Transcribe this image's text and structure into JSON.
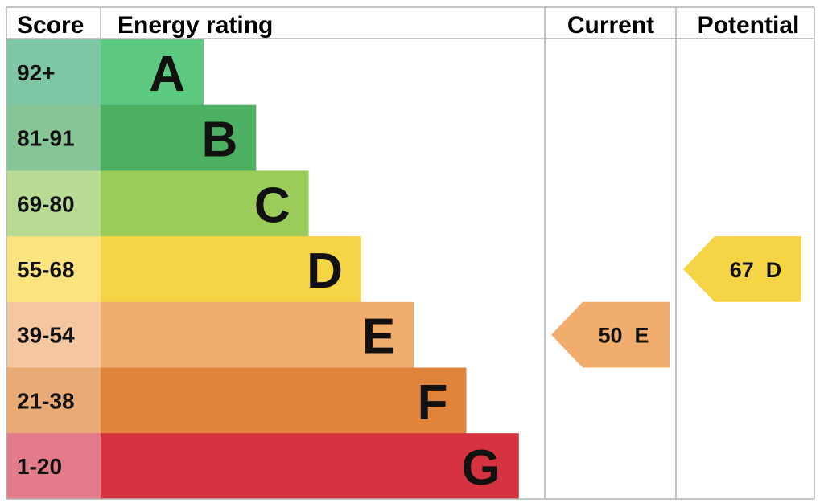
{
  "chart_data": {
    "type": "bar",
    "headers": {
      "score": "Score",
      "energy_rating": "Energy rating",
      "current": "Current",
      "potential": "Potential"
    },
    "bands": [
      {
        "letter": "A",
        "range": "92+",
        "min": 92,
        "max": 100,
        "color": "#5cc880",
        "score_bg": "#7fc6a4"
      },
      {
        "letter": "B",
        "range": "81-91",
        "min": 81,
        "max": 91,
        "color": "#4caf62",
        "score_bg": "#86c595"
      },
      {
        "letter": "C",
        "range": "69-80",
        "min": 69,
        "max": 80,
        "color": "#9bcc5a",
        "score_bg": "#b7db92"
      },
      {
        "letter": "D",
        "range": "55-68",
        "min": 55,
        "max": 68,
        "color": "#f5d445",
        "score_bg": "#fbe37e"
      },
      {
        "letter": "E",
        "range": "39-54",
        "min": 39,
        "max": 54,
        "color": "#f0ad6e",
        "score_bg": "#f5c7a1"
      },
      {
        "letter": "F",
        "range": "21-38",
        "min": 21,
        "max": 38,
        "color": "#e0843b",
        "score_bg": "#e9ab76"
      },
      {
        "letter": "G",
        "range": "1-20",
        "min": 1,
        "max": 20,
        "color": "#d63340",
        "score_bg": "#e37b8a"
      }
    ],
    "current": {
      "value": 50,
      "band": "E",
      "label": "50  E",
      "color": "#f0ad6e"
    },
    "potential": {
      "value": 67,
      "band": "D",
      "label": "67  D",
      "color": "#f5d445"
    }
  }
}
